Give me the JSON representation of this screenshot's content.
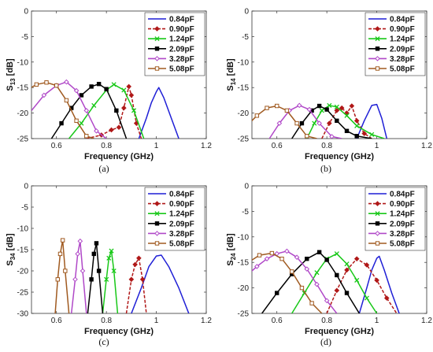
{
  "figure": {
    "series_styles": [
      {
        "color": "#1f1fd6",
        "marker": "none",
        "dash": "none"
      },
      {
        "color": "#b01818",
        "marker": "diamond-filled",
        "dash": "4,2"
      },
      {
        "color": "#18c818",
        "marker": "x",
        "dash": "none"
      },
      {
        "color": "#000000",
        "marker": "square-filled",
        "dash": "none"
      },
      {
        "color": "#b048c8",
        "marker": "diamond-open",
        "dash": "none"
      },
      {
        "color": "#a05a20",
        "marker": "square-open",
        "dash": "none"
      }
    ]
  },
  "chart_data": [
    {
      "type": "line",
      "panel_label": "(a)",
      "ylabel_main": "S",
      "ylabel_sub": "13",
      "ylabel_unit": "[dB]",
      "xlabel": "Frequency (GHz)",
      "xlim": [
        0.5,
        1.2
      ],
      "ylim": [
        -25,
        0
      ],
      "xticks": [
        "0.6",
        "0.8",
        "1",
        "1.2"
      ],
      "yticks": [
        "0",
        "-5",
        "-10",
        "-15",
        "-20",
        "-25"
      ],
      "xtick_values": [
        0.6,
        0.8,
        1.0,
        1.2
      ],
      "ytick_values": [
        0,
        -5,
        -10,
        -15,
        -20,
        -25
      ],
      "legend_position": "top-right",
      "series": [
        {
          "name": "0.84pF",
          "x": [
            0.93,
            0.96,
            0.98,
            1.0,
            1.01,
            1.03,
            1.06,
            1.09
          ],
          "y": [
            -25,
            -21,
            -18,
            -15.8,
            -15,
            -17,
            -21,
            -25
          ]
        },
        {
          "name": "0.90pF",
          "x": [
            0.72,
            0.78,
            0.82,
            0.85,
            0.87,
            0.89,
            0.9,
            0.92,
            0.94
          ],
          "y": [
            -25,
            -24.3,
            -23.3,
            -22.8,
            -19,
            -14.8,
            -16.5,
            -22,
            -25
          ]
        },
        {
          "name": "1.24pF",
          "x": [
            0.65,
            0.7,
            0.75,
            0.8,
            0.83,
            0.87,
            0.91,
            0.95
          ],
          "y": [
            -25,
            -22,
            -18.5,
            -15.5,
            -14.4,
            -15.5,
            -19.5,
            -25
          ]
        },
        {
          "name": "2.09pF",
          "x": [
            0.58,
            0.62,
            0.66,
            0.7,
            0.74,
            0.77,
            0.8,
            0.84,
            0.88
          ],
          "y": [
            -25,
            -22,
            -19,
            -16.5,
            -14.8,
            -14.3,
            -15.3,
            -19.5,
            -25
          ]
        },
        {
          "name": "3.28pF",
          "x": [
            0.5,
            0.55,
            0.6,
            0.64,
            0.68,
            0.72,
            0.76,
            0.8
          ],
          "y": [
            -19.5,
            -16.5,
            -14.6,
            -13.9,
            -15.6,
            -19.5,
            -23.5,
            -25
          ]
        },
        {
          "name": "5.08pF",
          "x": [
            0.47,
            0.52,
            0.56,
            0.6,
            0.64,
            0.68,
            0.72,
            0.75
          ],
          "y": [
            -15.8,
            -14.4,
            -14,
            -14.6,
            -17.5,
            -21.5,
            -24.5,
            -25
          ]
        }
      ]
    },
    {
      "type": "line",
      "panel_label": "(b)",
      "ylabel_main": "S",
      "ylabel_sub": "14",
      "ylabel_unit": "[dB]",
      "xlabel": "Frequency (GHz)",
      "xlim": [
        0.5,
        1.2
      ],
      "ylim": [
        -25,
        0
      ],
      "xticks": [
        "0.6",
        "0.8",
        "1",
        "1.2"
      ],
      "yticks": [
        "0",
        "-5",
        "-10",
        "-15",
        "-20",
        "-25"
      ],
      "xtick_values": [
        0.6,
        0.8,
        1.0,
        1.2
      ],
      "ytick_values": [
        0,
        -5,
        -10,
        -15,
        -20,
        -25
      ],
      "legend_position": "top-right",
      "series": [
        {
          "name": "0.84pF",
          "x": [
            0.92,
            0.95,
            0.98,
            1.0,
            1.02,
            1.04
          ],
          "y": [
            -25,
            -21.5,
            -18.5,
            -18.3,
            -21,
            -25
          ]
        },
        {
          "name": "0.90pF",
          "x": [
            0.78,
            0.81,
            0.84,
            0.86,
            0.88,
            0.9,
            0.92,
            0.95,
            0.98
          ],
          "y": [
            -25,
            -22,
            -19.5,
            -19,
            -20,
            -18.6,
            -21.5,
            -24,
            -25
          ]
        },
        {
          "name": "1.24pF",
          "x": [
            0.72,
            0.75,
            0.78,
            0.81,
            0.84,
            0.88,
            0.92,
            0.98,
            1.03
          ],
          "y": [
            -25,
            -22,
            -19.5,
            -18.5,
            -18.8,
            -20.5,
            -22.5,
            -24.2,
            -25
          ]
        },
        {
          "name": "2.09pF",
          "x": [
            0.66,
            0.7,
            0.74,
            0.77,
            0.8,
            0.84,
            0.88,
            0.92,
            0.98
          ],
          "y": [
            -25,
            -22,
            -19.5,
            -18.6,
            -19.3,
            -21.5,
            -23.5,
            -24.5,
            -25
          ]
        },
        {
          "name": "3.28pF",
          "x": [
            0.57,
            0.61,
            0.65,
            0.69,
            0.73,
            0.77,
            0.82,
            0.86
          ],
          "y": [
            -25,
            -22,
            -19.5,
            -18.5,
            -19.3,
            -22,
            -24.6,
            -25
          ]
        },
        {
          "name": "5.08pF",
          "x": [
            0.47,
            0.52,
            0.56,
            0.6,
            0.64,
            0.68,
            0.72,
            0.76
          ],
          "y": [
            -23,
            -20.5,
            -19,
            -18.6,
            -19.5,
            -22,
            -24.5,
            -25
          ]
        }
      ]
    },
    {
      "type": "line",
      "panel_label": "(c)",
      "ylabel_main": "S",
      "ylabel_sub": "34",
      "ylabel_unit": "[dB]",
      "xlabel": "Frequency (GHz)",
      "xlim": [
        0.5,
        1.2
      ],
      "ylim": [
        -30,
        0
      ],
      "xticks": [
        "0.6",
        "0.8",
        "1",
        "1.2"
      ],
      "yticks": [
        "0",
        "-5",
        "-10",
        "-15",
        "-20",
        "-25",
        "-30"
      ],
      "xtick_values": [
        0.6,
        0.8,
        1.0,
        1.2
      ],
      "ytick_values": [
        0,
        -5,
        -10,
        -15,
        -20,
        -25,
        -30
      ],
      "legend_position": "top-right",
      "series": [
        {
          "name": "0.84pF",
          "x": [
            0.9,
            0.94,
            0.97,
            1.0,
            1.02,
            1.05,
            1.09,
            1.13
          ],
          "y": [
            -30,
            -24,
            -19,
            -16.5,
            -16.3,
            -19,
            -24,
            -30
          ]
        },
        {
          "name": "0.90pF",
          "x": [
            0.88,
            0.9,
            0.915,
            0.93,
            0.945,
            0.96
          ],
          "y": [
            -30,
            -22,
            -18.5,
            -17,
            -22,
            -30
          ]
        },
        {
          "name": "1.24pF",
          "x": [
            0.785,
            0.8,
            0.81,
            0.82,
            0.83,
            0.845
          ],
          "y": [
            -30,
            -22,
            -17,
            -15.3,
            -20,
            -30
          ]
        },
        {
          "name": "2.09pF",
          "x": [
            0.725,
            0.74,
            0.75,
            0.76,
            0.77,
            0.785
          ],
          "y": [
            -30,
            -22,
            -16,
            -13.5,
            -20,
            -30
          ]
        },
        {
          "name": "3.28pF",
          "x": [
            0.66,
            0.675,
            0.685,
            0.695,
            0.705,
            0.72
          ],
          "y": [
            -30,
            -22,
            -16,
            -13,
            -20,
            -30
          ]
        },
        {
          "name": "5.08pF",
          "x": [
            0.595,
            0.605,
            0.615,
            0.625,
            0.635,
            0.65
          ],
          "y": [
            -30,
            -22,
            -16,
            -12.8,
            -20,
            -30
          ]
        }
      ]
    },
    {
      "type": "line",
      "panel_label": "(d)",
      "ylabel_main": "S",
      "ylabel_sub": "24",
      "ylabel_unit": "[dB]",
      "xlabel": "Frequency (GHz)",
      "xlim": [
        0.5,
        1.2
      ],
      "ylim": [
        -25,
        0
      ],
      "xticks": [
        "0.6",
        "0.8",
        "1",
        "1.2"
      ],
      "yticks": [
        "0",
        "-5",
        "-10",
        "-15",
        "-20",
        "-25"
      ],
      "xtick_values": [
        0.6,
        0.8,
        1.0,
        1.2
      ],
      "ytick_values": [
        0,
        -5,
        -10,
        -15,
        -20,
        -25
      ],
      "legend_position": "top-right",
      "series": [
        {
          "name": "0.84pF",
          "x": [
            0.93,
            0.96,
            0.98,
            1.0,
            1.01,
            1.03,
            1.06,
            1.09
          ],
          "y": [
            -25,
            -20,
            -16.5,
            -14.2,
            -13.8,
            -16.5,
            -21,
            -25
          ]
        },
        {
          "name": "0.90pF",
          "x": [
            0.8,
            0.84,
            0.88,
            0.92,
            0.96,
            1.0,
            1.04,
            1.08
          ],
          "y": [
            -25,
            -20.5,
            -16.5,
            -14.3,
            -15.5,
            -18.5,
            -22,
            -25
          ]
        },
        {
          "name": "1.24pF",
          "x": [
            0.66,
            0.71,
            0.76,
            0.8,
            0.84,
            0.88,
            0.92,
            0.96,
            1.0
          ],
          "y": [
            -25,
            -21,
            -17,
            -14.3,
            -13.3,
            -15.3,
            -18.5,
            -22,
            -25
          ]
        },
        {
          "name": "2.09pF",
          "x": [
            0.54,
            0.6,
            0.66,
            0.72,
            0.77,
            0.8,
            0.84,
            0.88,
            0.93
          ],
          "y": [
            -25,
            -21,
            -17.3,
            -14.3,
            -13,
            -14.5,
            -17.5,
            -21,
            -25
          ]
        },
        {
          "name": "3.28pF",
          "x": [
            0.47,
            0.52,
            0.56,
            0.6,
            0.64,
            0.68,
            0.72,
            0.76,
            0.8,
            0.84
          ],
          "y": [
            -18,
            -15.8,
            -14.3,
            -13.3,
            -12.8,
            -14,
            -16.3,
            -19.3,
            -22.5,
            -25
          ]
        },
        {
          "name": "5.08pF",
          "x": [
            0.47,
            0.53,
            0.58,
            0.62,
            0.66,
            0.7,
            0.74,
            0.78
          ],
          "y": [
            -15.5,
            -13.6,
            -13.2,
            -14.3,
            -16.8,
            -20,
            -23,
            -25
          ]
        }
      ]
    }
  ]
}
